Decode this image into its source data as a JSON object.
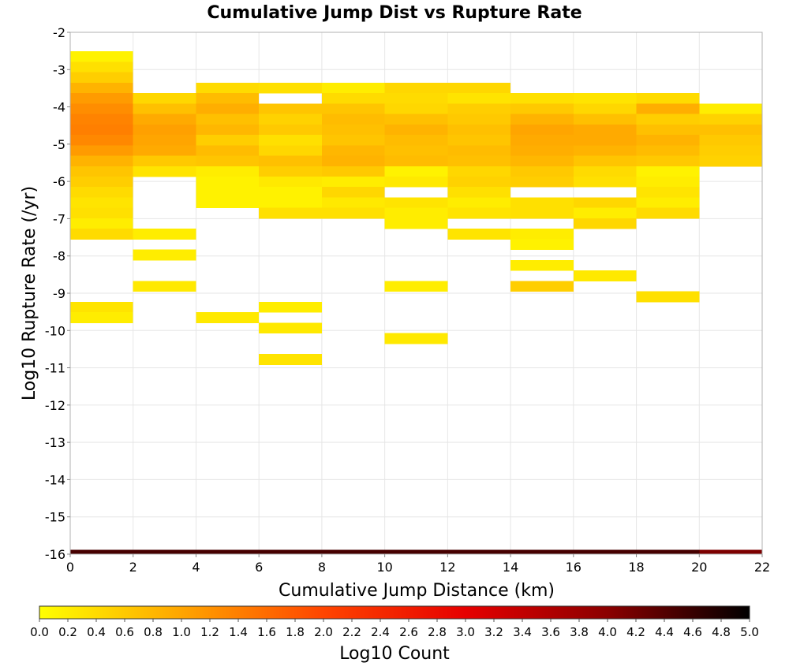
{
  "chart_data": {
    "type": "heatmap",
    "title": "Cumulative Jump Dist vs Rupture Rate",
    "xlabel": "Cumulative Jump Distance (km)",
    "ylabel": "Log10 Rupture Rate (/yr)",
    "xlim": [
      0,
      22
    ],
    "ylim": [
      -16,
      -2
    ],
    "x_bin_width": 2,
    "y_bin_height": 0.28,
    "x_ticks": [
      "0",
      "2",
      "4",
      "6",
      "8",
      "10",
      "12",
      "14",
      "16",
      "18",
      "20",
      "22"
    ],
    "y_ticks": [
      "-2",
      "-3",
      "-4",
      "-5",
      "-6",
      "-7",
      "-8",
      "-9",
      "-10",
      "-11",
      "-12",
      "-13",
      "-14",
      "-15",
      "-16"
    ],
    "grid": true,
    "colorbar": {
      "label": "Log10 Count",
      "range": [
        0,
        5
      ],
      "ticks": [
        "0.0",
        "0.2",
        "0.4",
        "0.6",
        "0.8",
        "1.0",
        "1.2",
        "1.4",
        "1.6",
        "1.8",
        "2.0",
        "2.2",
        "2.4",
        "2.6",
        "2.8",
        "3.0",
        "3.2",
        "3.4",
        "3.6",
        "3.8",
        "4.0",
        "4.2",
        "4.4",
        "4.6",
        "4.8",
        "5.0"
      ],
      "colormap": [
        "#ffff00",
        "#ffa500",
        "#ff4500",
        "#e60000",
        "#8b0000",
        "#000000"
      ]
    },
    "columns": [
      {
        "x_start": 0,
        "cells": [
          [
            -2.79,
            0.15
          ],
          [
            -3.07,
            0.35
          ],
          [
            -3.35,
            0.55
          ],
          [
            -3.63,
            0.85
          ],
          [
            -3.91,
            1.1
          ],
          [
            -4.19,
            1.25
          ],
          [
            -4.47,
            1.35
          ],
          [
            -4.75,
            1.4
          ],
          [
            -5.03,
            1.3
          ],
          [
            -5.31,
            1.1
          ],
          [
            -5.59,
            0.85
          ],
          [
            -5.87,
            0.65
          ],
          [
            -6.15,
            0.55
          ],
          [
            -6.43,
            0.4
          ],
          [
            -6.71,
            0.3
          ],
          [
            -6.99,
            0.35
          ],
          [
            -7.27,
            0.2
          ],
          [
            -7.55,
            0.4
          ],
          [
            -9.51,
            0.3
          ],
          [
            -9.79,
            0.2
          ]
        ]
      },
      {
        "x_start": 2,
        "cells": [
          [
            -3.91,
            0.45
          ],
          [
            -4.19,
            0.7
          ],
          [
            -4.47,
            0.95
          ],
          [
            -4.75,
            1.05
          ],
          [
            -5.03,
            1.0
          ],
          [
            -5.31,
            0.95
          ],
          [
            -5.59,
            0.6
          ],
          [
            -5.87,
            0.3
          ],
          [
            -7.55,
            0.2
          ],
          [
            -8.11,
            0.2
          ],
          [
            -8.95,
            0.25
          ]
        ]
      },
      {
        "x_start": 4,
        "cells": [
          [
            -3.63,
            0.4
          ],
          [
            -3.91,
            0.75
          ],
          [
            -4.19,
            0.9
          ],
          [
            -4.47,
            0.7
          ],
          [
            -4.75,
            0.8
          ],
          [
            -5.03,
            0.55
          ],
          [
            -5.31,
            0.75
          ],
          [
            -5.59,
            0.65
          ],
          [
            -5.87,
            0.2
          ],
          [
            -6.15,
            0.15
          ],
          [
            -6.43,
            0.15
          ],
          [
            -6.71,
            0.15
          ],
          [
            -9.79,
            0.25
          ]
        ]
      },
      {
        "x_start": 6,
        "cells": [
          [
            -3.63,
            0.35
          ],
          [
            -4.19,
            0.65
          ],
          [
            -4.47,
            0.5
          ],
          [
            -4.75,
            0.6
          ],
          [
            -5.03,
            0.35
          ],
          [
            -5.31,
            0.45
          ],
          [
            -5.59,
            0.7
          ],
          [
            -5.87,
            0.55
          ],
          [
            -6.15,
            0.25
          ],
          [
            -6.43,
            0.15
          ],
          [
            -6.71,
            0.15
          ],
          [
            -6.99,
            0.35
          ],
          [
            -9.51,
            0.2
          ],
          [
            -10.07,
            0.25
          ],
          [
            -10.91,
            0.3
          ]
        ]
      },
      {
        "x_start": 8,
        "cells": [
          [
            -3.63,
            0.2
          ],
          [
            -3.91,
            0.4
          ],
          [
            -4.19,
            0.65
          ],
          [
            -4.47,
            0.75
          ],
          [
            -4.75,
            0.7
          ],
          [
            -5.03,
            0.65
          ],
          [
            -5.31,
            0.8
          ],
          [
            -5.59,
            0.85
          ],
          [
            -5.87,
            0.6
          ],
          [
            -6.15,
            0.2
          ],
          [
            -6.43,
            0.45
          ],
          [
            -6.71,
            0.25
          ],
          [
            -6.99,
            0.35
          ]
        ]
      },
      {
        "x_start": 10,
        "cells": [
          [
            -3.63,
            0.45
          ],
          [
            -3.91,
            0.4
          ],
          [
            -4.19,
            0.45
          ],
          [
            -4.47,
            0.7
          ],
          [
            -4.75,
            0.85
          ],
          [
            -5.03,
            0.75
          ],
          [
            -5.31,
            0.7
          ],
          [
            -5.59,
            0.75
          ],
          [
            -5.87,
            0.15
          ],
          [
            -6.15,
            0.25
          ],
          [
            -6.71,
            0.3
          ],
          [
            -6.99,
            0.2
          ],
          [
            -7.27,
            0.2
          ],
          [
            -8.95,
            0.2
          ],
          [
            -10.35,
            0.25
          ]
        ]
      },
      {
        "x_start": 12,
        "cells": [
          [
            -3.63,
            0.45
          ],
          [
            -3.91,
            0.3
          ],
          [
            -4.19,
            0.55
          ],
          [
            -4.47,
            0.6
          ],
          [
            -4.75,
            0.7
          ],
          [
            -5.03,
            0.65
          ],
          [
            -5.31,
            0.75
          ],
          [
            -5.59,
            0.7
          ],
          [
            -5.87,
            0.45
          ],
          [
            -6.15,
            0.5
          ],
          [
            -6.43,
            0.35
          ],
          [
            -6.71,
            0.2
          ],
          [
            -6.99,
            0.3
          ],
          [
            -7.55,
            0.3
          ]
        ]
      },
      {
        "x_start": 14,
        "cells": [
          [
            -3.91,
            0.35
          ],
          [
            -4.19,
            0.6
          ],
          [
            -4.47,
            0.85
          ],
          [
            -4.75,
            1.0
          ],
          [
            -5.03,
            0.95
          ],
          [
            -5.31,
            0.9
          ],
          [
            -5.59,
            0.8
          ],
          [
            -5.87,
            0.6
          ],
          [
            -6.15,
            0.55
          ],
          [
            -6.71,
            0.35
          ],
          [
            -6.99,
            0.35
          ],
          [
            -7.55,
            0.2
          ],
          [
            -7.83,
            0.15
          ],
          [
            -8.39,
            0.2
          ],
          [
            -8.95,
            0.55
          ]
        ]
      },
      {
        "x_start": 16,
        "cells": [
          [
            -3.91,
            0.3
          ],
          [
            -4.19,
            0.45
          ],
          [
            -4.47,
            0.7
          ],
          [
            -4.75,
            0.95
          ],
          [
            -5.03,
            0.95
          ],
          [
            -5.31,
            0.85
          ],
          [
            -5.59,
            0.65
          ],
          [
            -5.87,
            0.4
          ],
          [
            -6.15,
            0.35
          ],
          [
            -6.71,
            0.45
          ],
          [
            -6.99,
            0.2
          ],
          [
            -7.27,
            0.45
          ],
          [
            -8.67,
            0.25
          ]
        ]
      },
      {
        "x_start": 18,
        "cells": [
          [
            -3.91,
            0.4
          ],
          [
            -4.19,
            0.9
          ],
          [
            -4.47,
            0.55
          ],
          [
            -4.75,
            0.7
          ],
          [
            -5.03,
            0.85
          ],
          [
            -5.31,
            0.75
          ],
          [
            -5.59,
            0.6
          ],
          [
            -5.87,
            0.15
          ],
          [
            -6.15,
            0.2
          ],
          [
            -6.43,
            0.3
          ],
          [
            -6.71,
            0.2
          ],
          [
            -6.99,
            0.4
          ],
          [
            -9.23,
            0.35
          ]
        ]
      },
      {
        "x_start": 20,
        "cells": [
          [
            -4.19,
            0.2
          ],
          [
            -4.47,
            0.5
          ],
          [
            -4.75,
            0.7
          ],
          [
            -5.03,
            0.6
          ],
          [
            -5.31,
            0.55
          ],
          [
            -5.59,
            0.5
          ]
        ]
      }
    ],
    "bottom_row": {
      "y_low": -16,
      "y_high": -15.88,
      "values": [
        4.5,
        4.5,
        4.5,
        4.5,
        4.5,
        4.5,
        4.5,
        4.5,
        4.5,
        4.5,
        4.1
      ]
    }
  }
}
